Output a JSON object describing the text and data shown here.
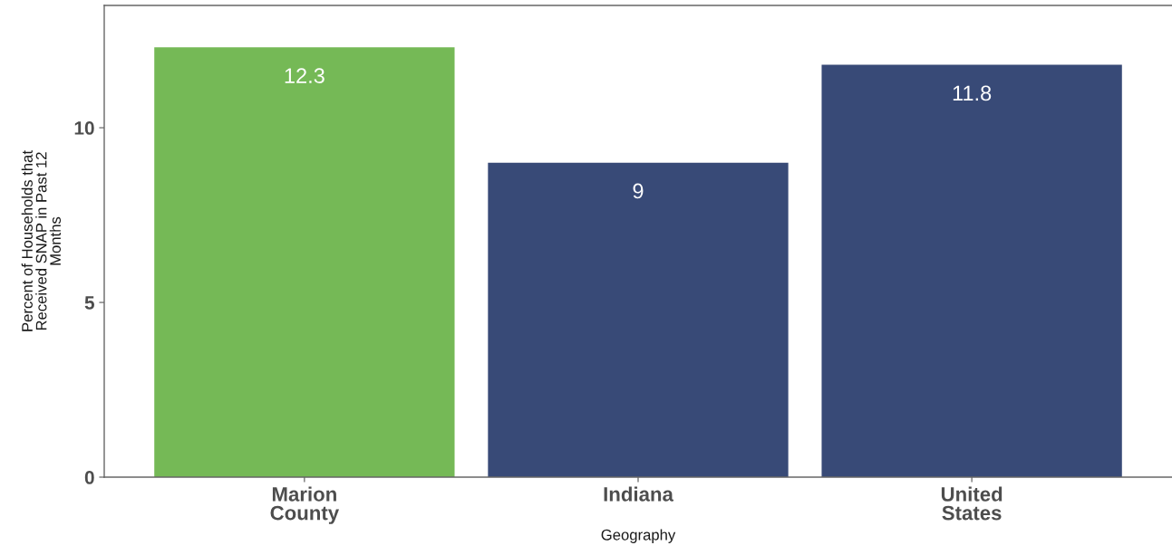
{
  "chart_data": {
    "type": "bar",
    "categories": [
      "Marion\nCounty",
      "Indiana",
      "United\nStates"
    ],
    "values": [
      12.3,
      9,
      11.8
    ],
    "colors": [
      "#75b956",
      "#384a77",
      "#384a77"
    ],
    "xlabel": "Geography",
    "ylabel": "Percent of Households that\nReceived SNAP in Past 12\nMonths",
    "ylim": [
      0,
      13.5
    ],
    "yticks": [
      0,
      5,
      10
    ],
    "data_labels": true,
    "grid": false
  }
}
